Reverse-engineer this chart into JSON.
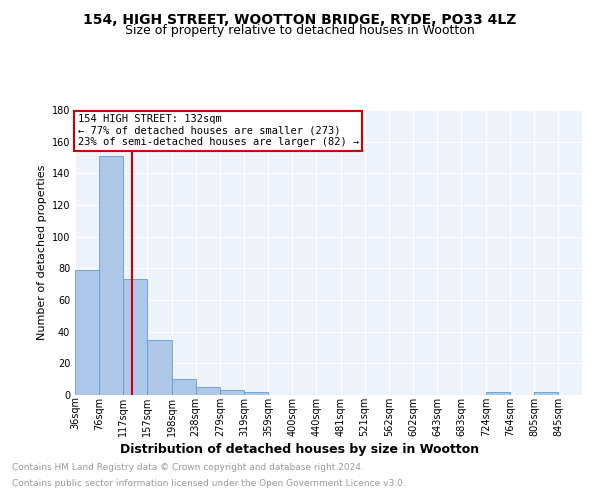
{
  "title1": "154, HIGH STREET, WOOTTON BRIDGE, RYDE, PO33 4LZ",
  "title2": "Size of property relative to detached houses in Wootton",
  "xlabel": "Distribution of detached houses by size in Wootton",
  "ylabel": "Number of detached properties",
  "bin_labels": [
    "36sqm",
    "76sqm",
    "117sqm",
    "157sqm",
    "198sqm",
    "238sqm",
    "279sqm",
    "319sqm",
    "359sqm",
    "400sqm",
    "440sqm",
    "481sqm",
    "521sqm",
    "562sqm",
    "602sqm",
    "643sqm",
    "683sqm",
    "724sqm",
    "764sqm",
    "805sqm",
    "845sqm"
  ],
  "bin_edges": [
    36,
    76,
    117,
    157,
    198,
    238,
    279,
    319,
    359,
    400,
    440,
    481,
    521,
    562,
    602,
    643,
    683,
    724,
    764,
    805,
    845
  ],
  "bar_heights": [
    79,
    151,
    73,
    35,
    10,
    5,
    3,
    2,
    0,
    0,
    0,
    0,
    0,
    0,
    0,
    0,
    0,
    2,
    0,
    2
  ],
  "bar_color": "#aec6e8",
  "bar_edge_color": "#5a9fd4",
  "vline_x": 132,
  "vline_color": "#cc0000",
  "ylim": [
    0,
    180
  ],
  "yticks": [
    0,
    20,
    40,
    60,
    80,
    100,
    120,
    140,
    160,
    180
  ],
  "annotation_text": "154 HIGH STREET: 132sqm\n← 77% of detached houses are smaller (273)\n23% of semi-detached houses are larger (82) →",
  "annotation_box_color": "#cc0000",
  "footnote1": "Contains HM Land Registry data © Crown copyright and database right 2024.",
  "footnote2": "Contains public sector information licensed under the Open Government Licence v3.0.",
  "background_color": "#eef2fa",
  "grid_color": "#ffffff",
  "title1_fontsize": 10,
  "title2_fontsize": 9,
  "xlabel_fontsize": 9,
  "ylabel_fontsize": 8,
  "footnote_fontsize": 6.5,
  "tick_fontsize": 7,
  "annot_fontsize": 7.5
}
